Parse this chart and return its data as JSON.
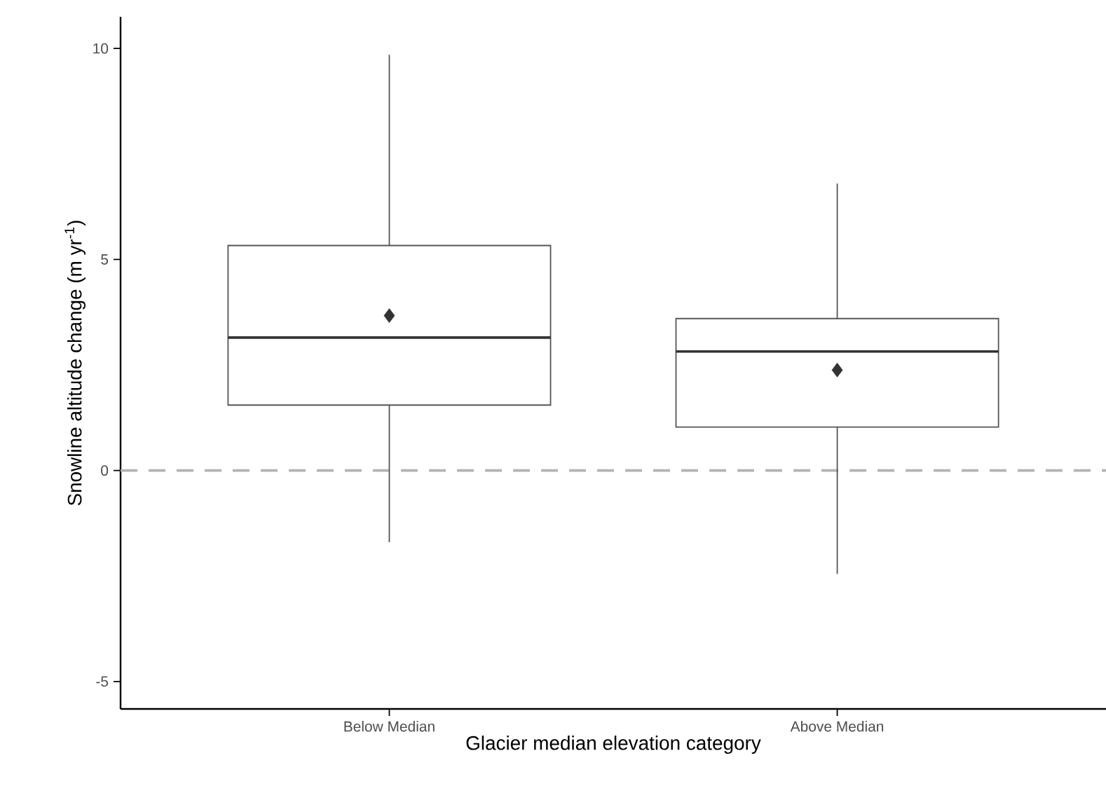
{
  "chart_data": {
    "type": "box",
    "xlabel": "Glacier median elevation category",
    "ylabel": "Snowline altitude change (m yr$^{-1}$)",
    "categories": [
      "Below Median",
      "Above Median"
    ],
    "boxes": [
      {
        "low": -1.7,
        "q1": 1.55,
        "median": 3.15,
        "q3": 5.33,
        "high": 9.85,
        "mean": 3.67
      },
      {
        "low": -2.45,
        "q1": 1.03,
        "median": 2.82,
        "q3": 3.6,
        "high": 6.8,
        "mean": 2.38
      }
    ],
    "ylim": [
      -5.65,
      10.75
    ],
    "yticks": [
      -5,
      0,
      5,
      10
    ],
    "grid": false,
    "ref_lines": [
      {
        "axis": "y",
        "value": 0,
        "color": "#b3b3b3",
        "line_style": "dashed"
      }
    ]
  }
}
